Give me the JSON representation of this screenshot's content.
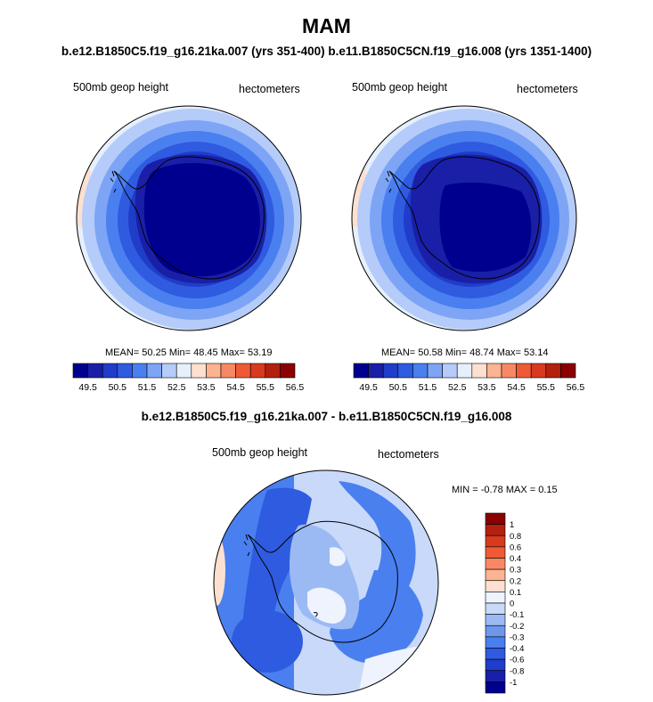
{
  "title": "MAM",
  "subtitle": "b.e12.B1850C5.f19_g16.21ka.007 (yrs 351-400) b.e11.B1850C5CN.f19_g16.008 (yrs 1351-1400)",
  "panels": [
    {
      "variable_label": "500mb geop height",
      "units_label": "hectometers",
      "stats": {
        "mean_label": "MEAN=",
        "mean": "50.25",
        "min_label": "Min=",
        "min": "48.45",
        "max_label": "Max=",
        "max": "53.19"
      }
    },
    {
      "variable_label": "500mb geop height",
      "units_label": "hectometers",
      "stats": {
        "mean_label": "MEAN=",
        "mean": "50.58",
        "min_label": "Min=",
        "min": "48.74",
        "max_label": "Max=",
        "max": "53.14"
      }
    }
  ],
  "top_colorbar": {
    "colors": [
      "#00008f",
      "#1a1fa8",
      "#1f3dc8",
      "#2f5be0",
      "#4a7ff0",
      "#7ea4f5",
      "#b5ccfa",
      "#e6f0fd",
      "#fde0d0",
      "#fbb391",
      "#f78864",
      "#ef5a35",
      "#d83a1e",
      "#b3200f",
      "#8b0000"
    ],
    "tick_labels": [
      "49.5",
      "50.5",
      "51.5",
      "52.5",
      "53.5",
      "54.5",
      "55.5",
      "56.5"
    ]
  },
  "diff_title": "b.e12.B1850C5.f19_g16.21ka.007 - b.e11.B1850C5CN.f19_g16.008",
  "diff_panel": {
    "variable_label": "500mb geop height",
    "units_label": "hectometers",
    "min_max_text": "MIN =  -0.78 MAX =   0.15"
  },
  "diff_colorbar": {
    "colors": [
      "#8b0000",
      "#b3200f",
      "#d83a1e",
      "#ef5a35",
      "#f78864",
      "#fbb391",
      "#fde0d0",
      "#eef3fd",
      "#c8d9fa",
      "#9bbaf4",
      "#6e97ec",
      "#4a7ff0",
      "#2f5be0",
      "#1f3dc8",
      "#1a1fa8",
      "#00008f"
    ],
    "tick_labels": [
      "1",
      "0.8",
      "0.6",
      "0.4",
      "0.3",
      "0.2",
      "0.1",
      "0",
      "-0.1",
      "-0.2",
      "-0.3",
      "-0.4",
      "-0.6",
      "-0.8",
      "-1"
    ]
  }
}
